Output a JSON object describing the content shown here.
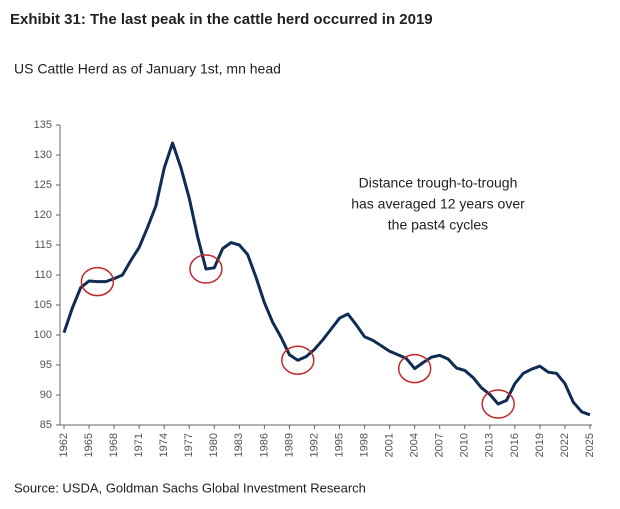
{
  "chart_data": {
    "type": "line",
    "title": "Exhibit 31: The last peak in the cattle herd occurred in 2019",
    "subtitle": "US Cattle Herd as of January 1st, mn head",
    "source": "Source: USDA, Goldman Sachs Global Investment Research",
    "annotation": [
      "Distance trough-to-trough",
      "has averaged 12 years over",
      "the past4 cycles"
    ],
    "x": [
      1962,
      1963,
      1964,
      1965,
      1966,
      1967,
      1968,
      1969,
      1970,
      1971,
      1972,
      1973,
      1974,
      1975,
      1976,
      1977,
      1978,
      1979,
      1980,
      1981,
      1982,
      1983,
      1984,
      1985,
      1986,
      1987,
      1988,
      1989,
      1990,
      1991,
      1992,
      1993,
      1994,
      1995,
      1996,
      1997,
      1998,
      1999,
      2000,
      2001,
      2002,
      2003,
      2004,
      2005,
      2006,
      2007,
      2008,
      2009,
      2010,
      2011,
      2012,
      2013,
      2014,
      2015,
      2016,
      2017,
      2018,
      2019,
      2020,
      2021,
      2022,
      2023,
      2024,
      2025
    ],
    "series": [
      {
        "name": "US Cattle Herd",
        "color": "#0f2d52",
        "values": [
          100.4,
          104.5,
          107.9,
          109.0,
          108.9,
          108.9,
          109.4,
          110.0,
          112.4,
          114.6,
          117.9,
          121.5,
          127.8,
          132.0,
          127.9,
          122.8,
          116.4,
          111.0,
          111.2,
          114.4,
          115.4,
          115.0,
          113.4,
          109.6,
          105.4,
          102.1,
          99.6,
          96.7,
          95.8,
          96.4,
          97.6,
          99.2,
          101.0,
          102.8,
          103.5,
          101.7,
          99.7,
          99.1,
          98.2,
          97.3,
          96.7,
          96.1,
          94.4,
          95.4,
          96.3,
          96.6,
          96.0,
          94.5,
          94.1,
          92.9,
          91.2,
          90.1,
          88.5,
          89.1,
          91.9,
          93.6,
          94.3,
          94.8,
          93.8,
          93.6,
          91.9,
          88.8,
          87.2,
          86.7
        ]
      }
    ],
    "markers": [
      1966,
      1979,
      1990,
      2004,
      2014
    ],
    "marker_color": "#c0282d",
    "xlim": [
      1962,
      2025
    ],
    "xticks": [
      1962,
      1965,
      1968,
      1971,
      1974,
      1977,
      1980,
      1983,
      1986,
      1989,
      1992,
      1995,
      1998,
      2001,
      2004,
      2007,
      2010,
      2013,
      2016,
      2019,
      2022,
      2025
    ],
    "ylim": [
      85,
      135
    ],
    "yticks": [
      85,
      90,
      95,
      100,
      105,
      110,
      115,
      120,
      125,
      130,
      135
    ],
    "grid": false
  }
}
